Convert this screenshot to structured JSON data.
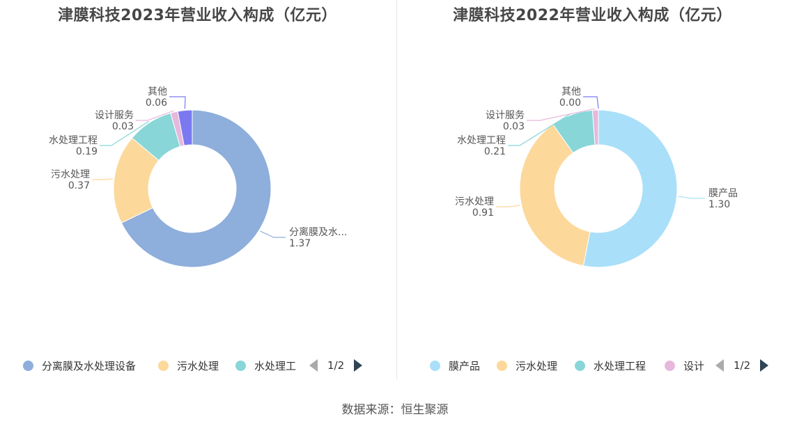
{
  "chart_data": [
    {
      "type": "pie",
      "title": "津膜科技2023年营业收入构成（亿元）",
      "categories": [
        "分离膜及水处理设备",
        "污水处理",
        "水处理工程",
        "设计服务",
        "其他"
      ],
      "slice_labels": [
        "分离膜及水...",
        "污水处理",
        "水处理工程",
        "设计服务",
        "其他"
      ],
      "values": [
        1.37,
        0.37,
        0.19,
        0.03,
        0.06
      ],
      "value_labels": [
        "1.37",
        "0.37",
        "0.19",
        "0.03",
        "0.06"
      ],
      "colors": [
        "#8eaedb",
        "#fdd89b",
        "#88d6d8",
        "#e6b8dc",
        "#7b79f0"
      ],
      "legend": {
        "position": "bottom",
        "items": [
          "分离膜及水处理设备",
          "污水处理",
          "水处理工"
        ],
        "page": "1/2"
      }
    },
    {
      "type": "pie",
      "title": "津膜科技2022年营业收入构成（亿元）",
      "categories": [
        "膜产品",
        "污水处理",
        "水处理工程",
        "设计服务",
        "其他"
      ],
      "slice_labels": [
        "膜产品",
        "污水处理",
        "水处理工程",
        "设计服务",
        "其他"
      ],
      "values": [
        1.3,
        0.91,
        0.21,
        0.03,
        0.0
      ],
      "value_labels": [
        "1.30",
        "0.91",
        "0.21",
        "0.03",
        "0.00"
      ],
      "colors": [
        "#a9dff9",
        "#fdd89b",
        "#88d6d8",
        "#e6b8dc",
        "#7b79f0"
      ],
      "legend": {
        "position": "bottom",
        "items": [
          "膜产品",
          "污水处理",
          "水处理工程",
          "设计"
        ],
        "page": "1/2"
      }
    }
  ],
  "source": "数据来源：恒生聚源"
}
